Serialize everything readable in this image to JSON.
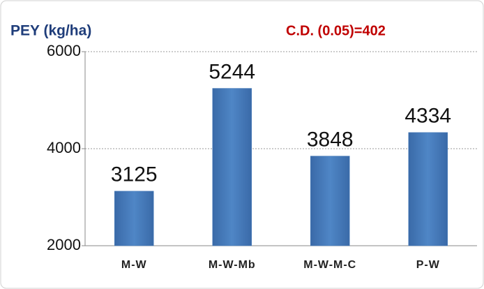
{
  "chart_data": {
    "type": "bar",
    "title": "PEY (kg/ha)",
    "annotation": "C.D. (0.05)=402",
    "categories": [
      "M-W",
      "M-W-Mb",
      "M-W-M-C",
      "P-W"
    ],
    "values": [
      3125,
      5244,
      3848,
      4334
    ],
    "color": "#4a7ebb",
    "ylim": [
      2000,
      6000
    ],
    "yticks": [
      2000,
      4000,
      6000
    ],
    "grid": true
  }
}
